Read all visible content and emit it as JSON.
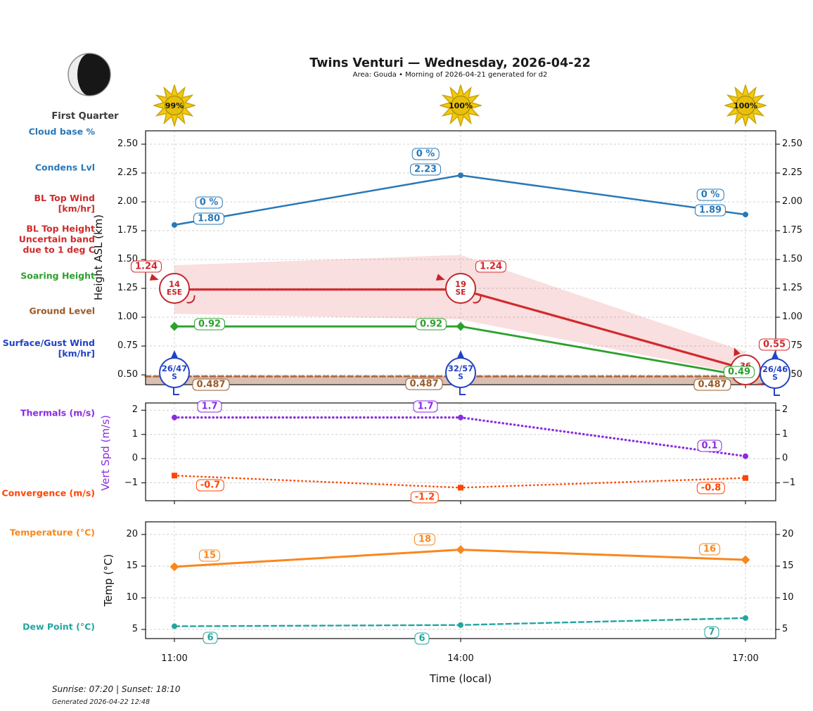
{
  "header": {
    "title": "Twins Venturi — Wednesday, 2026-04-22",
    "subtitle": "Area: Gouda • Morning of 2026-04-21 generated for d2"
  },
  "moon": {
    "label": "First Quarter"
  },
  "sun_cloud_percents": [
    "99%",
    "100%",
    "100%"
  ],
  "side_labels": [
    {
      "id": "cloud-base",
      "text": "Cloud base %",
      "color": "#2878b8"
    },
    {
      "id": "condens-lvl",
      "text": "Condens Lvl",
      "color": "#2878b8"
    },
    {
      "id": "bl-top-wind",
      "text": "BL Top Wind\n[km/hr]",
      "color": "#cf2b2b"
    },
    {
      "id": "bl-top-height",
      "text": "BL Top Height\nUncertain band\ndue to 1 deg C",
      "color": "#cf2b2b"
    },
    {
      "id": "soaring-height",
      "text": "Soaring Height",
      "color": "#2ca02c"
    },
    {
      "id": "ground-level",
      "text": "Ground Level",
      "color": "#9a5a28"
    },
    {
      "id": "surface-gust-wind",
      "text": "Surface/Gust Wind\n[km/hr]",
      "color": "#2343c5"
    },
    {
      "id": "thermals",
      "text": "Thermals (m/s)",
      "color": "#8a2be2"
    },
    {
      "id": "convergence",
      "text": "Convergence (m/s)",
      "color": "#ff4500"
    },
    {
      "id": "temperature",
      "text": "Temperature (°C)",
      "color": "#f8871f"
    },
    {
      "id": "dew-point",
      "text": "Dew Point (°C)",
      "color": "#23a69f"
    }
  ],
  "wind_barbs": {
    "bl_top": {
      "color": "#c5262a",
      "points": [
        {
          "speed": "14",
          "dir": "ESE"
        },
        {
          "speed": "19",
          "dir": "SE"
        },
        {
          "speed": "36",
          "dir": "S"
        }
      ]
    },
    "surface": {
      "color": "#2343c5",
      "points": [
        {
          "speed": "26/47",
          "dir": "S"
        },
        {
          "speed": "32/57",
          "dir": "S"
        },
        {
          "speed": "26/46",
          "dir": "S"
        }
      ]
    }
  },
  "footer": {
    "sun_times": "Sunrise: 07:20 | Sunset: 18:10",
    "generated": "Generated 2026-04-22 12:48"
  },
  "chart_data": [
    {
      "type": "line",
      "ylabel": "Height ASL (km)",
      "x": [
        "11:00",
        "14:00",
        "17:00"
      ],
      "ylim": [
        0.415,
        2.616
      ],
      "ytick_values": [
        2.5,
        2.25,
        2.0,
        1.75,
        1.5,
        1.25,
        1.0,
        0.75,
        0.5
      ],
      "ytick_labels": [
        "2.50",
        "2.25",
        "2.00",
        "1.75",
        "1.50",
        "1.25",
        "1.00",
        "0.75",
        "0.50"
      ],
      "series": [
        {
          "name": "Cloud base / Condens Lvl",
          "color": "#2878b8",
          "style": "solid",
          "marker": "circle",
          "values": [
            1.8,
            2.23,
            1.89
          ],
          "point_labels": [
            "1.80",
            "2.23",
            "1.89"
          ],
          "pct_labels": [
            "0 %",
            "0 %",
            "0 %"
          ]
        },
        {
          "name": "BL Top Height",
          "color": "#d3292d",
          "style": "solid",
          "marker": "none",
          "values": [
            1.24,
            1.24,
            0.55
          ],
          "point_labels": [
            "1.24",
            "1.24",
            "0.55"
          ]
        },
        {
          "name": "Soaring Height",
          "color": "#2ca02c",
          "style": "solid",
          "marker": "diamond",
          "values": [
            0.92,
            0.92,
            0.49
          ],
          "point_labels": [
            "0.92",
            "0.92",
            "0.49"
          ]
        },
        {
          "name": "Ground Level",
          "color": "#b06a45",
          "label_color": "#9a5a28",
          "style": "dashed",
          "marker": "none",
          "values": [
            0.487,
            0.487,
            0.487
          ],
          "point_labels": [
            "0.487",
            "0.487",
            "0.487"
          ],
          "fill_below": true
        }
      ],
      "band": {
        "name": "BL Top Height uncertainty band",
        "upper": [
          1.45,
          1.54,
          0.7
        ],
        "lower": [
          1.03,
          0.98,
          0.5
        ],
        "color": "rgba(214,39,40,0.15)"
      }
    },
    {
      "type": "line",
      "ylabel": "Vert Spd (m/s)",
      "x": [
        "11:00",
        "14:00",
        "17:00"
      ],
      "ylim": [
        -1.74,
        2.3
      ],
      "ytick_values": [
        2,
        1,
        0,
        -1
      ],
      "ytick_labels": [
        "2",
        "1",
        "0",
        "−1"
      ],
      "series": [
        {
          "name": "Thermals (m/s)",
          "color": "#8a2be2",
          "style": "dotted",
          "marker": "circle",
          "values": [
            1.7,
            1.7,
            0.1
          ],
          "point_labels": [
            "1.7",
            "1.7",
            "0.1"
          ]
        },
        {
          "name": "Convergence (m/s)",
          "color": "#ff4500",
          "style": "dotted",
          "marker": "square",
          "values": [
            -0.7,
            -1.2,
            -0.8
          ],
          "point_labels": [
            "-0.7",
            "-1.2",
            "-0.8"
          ]
        }
      ]
    },
    {
      "type": "line",
      "ylabel": "Temp (°C)",
      "xlabel": "Time (local)",
      "x": [
        "11:00",
        "14:00",
        "17:00"
      ],
      "ylim": [
        3.56,
        22.0
      ],
      "ytick_values": [
        20,
        15,
        10,
        5
      ],
      "ytick_labels": [
        "20",
        "15",
        "10",
        "5"
      ],
      "series": [
        {
          "name": "Temperature (°C)",
          "color": "#f8871f",
          "style": "solid",
          "marker": "diamond",
          "values": [
            14.9,
            17.6,
            16.0
          ],
          "point_labels": [
            "15",
            "18",
            "16"
          ]
        },
        {
          "name": "Dew Point (°C)",
          "color": "#23a69f",
          "style": "dashed",
          "marker": "circle",
          "values": [
            5.5,
            5.7,
            6.8
          ],
          "point_labels": [
            "6",
            "6",
            "7"
          ]
        }
      ]
    }
  ]
}
